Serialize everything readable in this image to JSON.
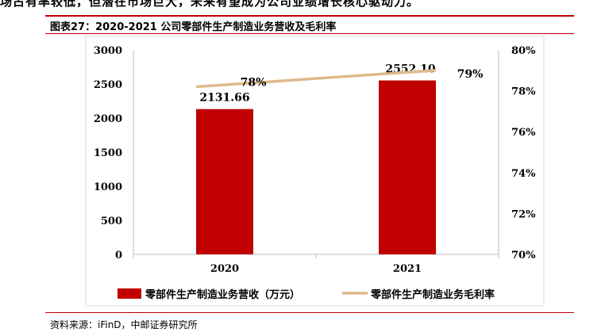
{
  "header": {
    "intro_text": "场占有率较低，但潜在市场巨大，未来有望成为公司业绩增长核心驱动力。",
    "figure_title": "图表27：2020-2021 公司零部件生产制造业务营收及毛利率"
  },
  "footer": {
    "source": "资料来源：iFinD，中邮证券研究所"
  },
  "colors": {
    "bar": "#c00000",
    "line": "#dfb98c",
    "rule": "#c00000"
  },
  "chart_data": {
    "type": "bar",
    "categories": [
      "2020",
      "2021"
    ],
    "series": [
      {
        "name": "零部件生产制造业务营收（万元）",
        "type": "bar",
        "axis": "left",
        "values": [
          2131.66,
          2552.1
        ],
        "labels": [
          "2131.66",
          "2552.10"
        ]
      },
      {
        "name": "零部件生产制造业务毛利率",
        "type": "line",
        "axis": "right",
        "values": [
          78.2,
          79.0
        ],
        "labels": [
          "78%",
          "79%"
        ]
      }
    ],
    "left_axis": {
      "min": 0,
      "max": 3000,
      "step": 500,
      "ticks": [
        "0",
        "500",
        "1000",
        "1500",
        "2000",
        "2500",
        "3000"
      ]
    },
    "right_axis": {
      "min": 70,
      "max": 80,
      "step": 2,
      "ticks": [
        "70%",
        "72%",
        "74%",
        "76%",
        "78%",
        "80%"
      ]
    },
    "grid": false,
    "legend_position": "bottom"
  }
}
